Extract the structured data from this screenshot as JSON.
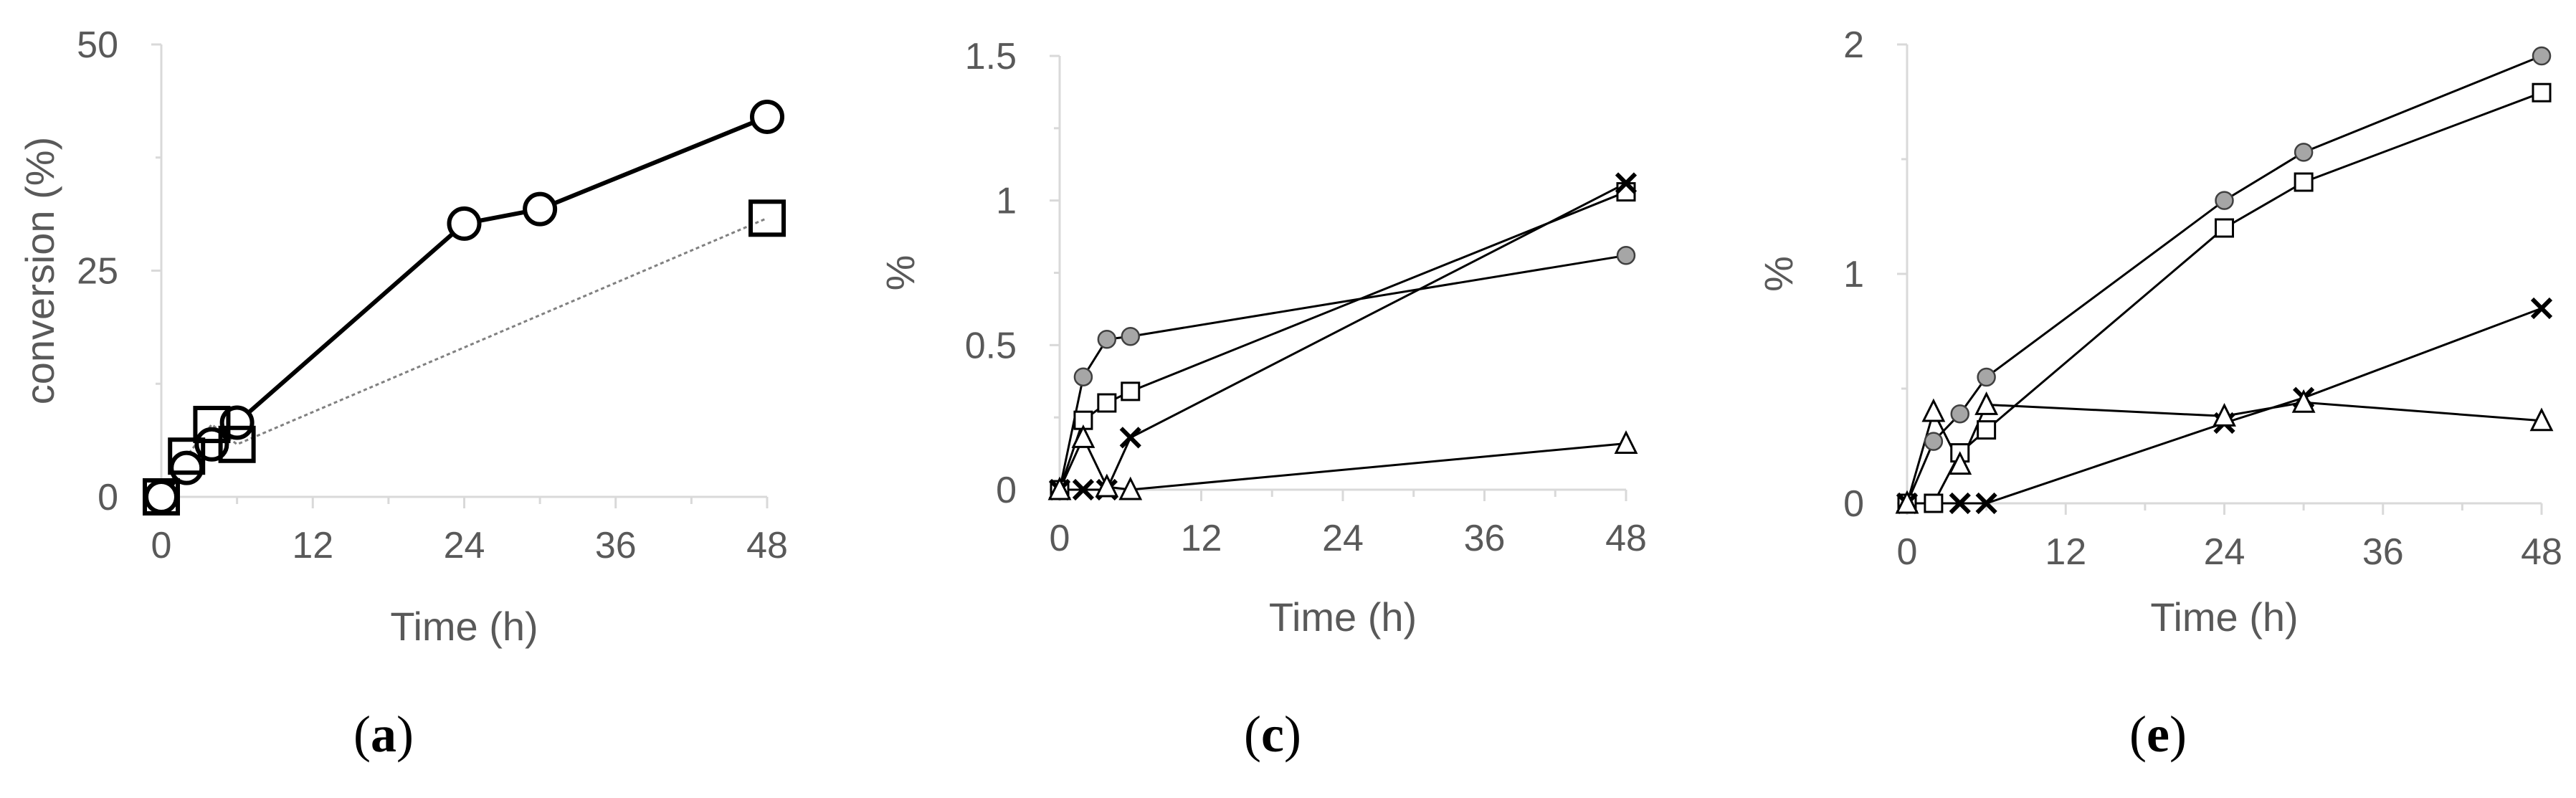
{
  "chart_data": [
    {
      "type": "line",
      "panel": "a",
      "caption": "(a)",
      "xlabel": "Time (h)",
      "ylabel": "conversion (%)",
      "xlim": [
        0,
        48
      ],
      "ylim": [
        0,
        50
      ],
      "x_ticks": [
        "0",
        "12",
        "24",
        "36",
        "48"
      ],
      "y_ticks": [
        "0",
        "25",
        "50"
      ],
      "grid": false,
      "series": [
        {
          "marker": "circle-open-large",
          "line": "solid-bold",
          "color": "#000000",
          "points": [
            [
              0,
              0
            ],
            [
              2,
              3.2
            ],
            [
              4,
              5.8
            ],
            [
              6,
              8.2
            ],
            [
              24,
              30.2
            ],
            [
              30,
              31.8
            ],
            [
              48,
              42
            ]
          ]
        },
        {
          "marker": "square-open-large",
          "line": "dotted-gray",
          "color": "#808080",
          "points": [
            [
              0,
              0
            ],
            [
              2,
              4.5
            ],
            [
              4,
              8.0
            ],
            [
              6,
              5.8
            ],
            [
              48,
              30.8
            ]
          ]
        }
      ]
    },
    {
      "type": "line",
      "panel": "c",
      "caption": "(c)",
      "xlabel": "Time (h)",
      "ylabel": "%",
      "xlim": [
        0,
        48
      ],
      "ylim": [
        0,
        1.5
      ],
      "x_ticks": [
        "0",
        "12",
        "24",
        "36",
        "48"
      ],
      "y_ticks": [
        "0",
        "0.5",
        "1",
        "1.5"
      ],
      "grid": false,
      "series": [
        {
          "marker": "circle-gray",
          "points": [
            [
              0,
              0
            ],
            [
              2,
              0.39
            ],
            [
              4,
              0.52
            ],
            [
              6,
              0.53
            ],
            [
              48,
              0.81
            ]
          ]
        },
        {
          "marker": "square-open",
          "points": [
            [
              0,
              0
            ],
            [
              2,
              0.24
            ],
            [
              4,
              0.3
            ],
            [
              6,
              0.34
            ],
            [
              48,
              1.03
            ]
          ]
        },
        {
          "marker": "cross",
          "points": [
            [
              0,
              0
            ],
            [
              2,
              0
            ],
            [
              4,
              0
            ],
            [
              6,
              0.18
            ],
            [
              48,
              1.06
            ]
          ]
        },
        {
          "marker": "triangle-open",
          "points": [
            [
              0,
              0
            ],
            [
              2,
              0.18
            ],
            [
              4,
              0.01
            ],
            [
              6,
              0.0
            ],
            [
              48,
              0.16
            ]
          ]
        }
      ]
    },
    {
      "type": "line",
      "panel": "e",
      "caption": "(e)",
      "xlabel": "Time (h)",
      "ylabel": "%",
      "xlim": [
        0,
        48
      ],
      "ylim": [
        0,
        2
      ],
      "x_ticks": [
        "0",
        "12",
        "24",
        "36",
        "48"
      ],
      "y_ticks": [
        "0",
        "1",
        "2"
      ],
      "grid": false,
      "series": [
        {
          "marker": "circle-gray",
          "points": [
            [
              0,
              0
            ],
            [
              2,
              0.27
            ],
            [
              4,
              0.39
            ],
            [
              6,
              0.55
            ],
            [
              24,
              1.32
            ],
            [
              30,
              1.53
            ],
            [
              48,
              1.95
            ]
          ]
        },
        {
          "marker": "square-open",
          "points": [
            [
              0,
              0
            ],
            [
              2,
              0
            ],
            [
              4,
              0.22
            ],
            [
              6,
              0.32
            ],
            [
              24,
              1.2
            ],
            [
              30,
              1.4
            ],
            [
              48,
              1.79
            ]
          ]
        },
        {
          "marker": "cross",
          "points": [
            [
              0,
              0
            ],
            [
              4,
              0
            ],
            [
              6,
              0
            ],
            [
              24,
              0.35
            ],
            [
              30,
              0.46
            ],
            [
              48,
              0.85
            ]
          ]
        },
        {
          "marker": "triangle-open",
          "points": [
            [
              0,
              0
            ],
            [
              2,
              0.4
            ],
            [
              4,
              0.17
            ],
            [
              6,
              0.43
            ],
            [
              24,
              0.38
            ],
            [
              30,
              0.44
            ],
            [
              48,
              0.36
            ]
          ]
        }
      ]
    }
  ]
}
